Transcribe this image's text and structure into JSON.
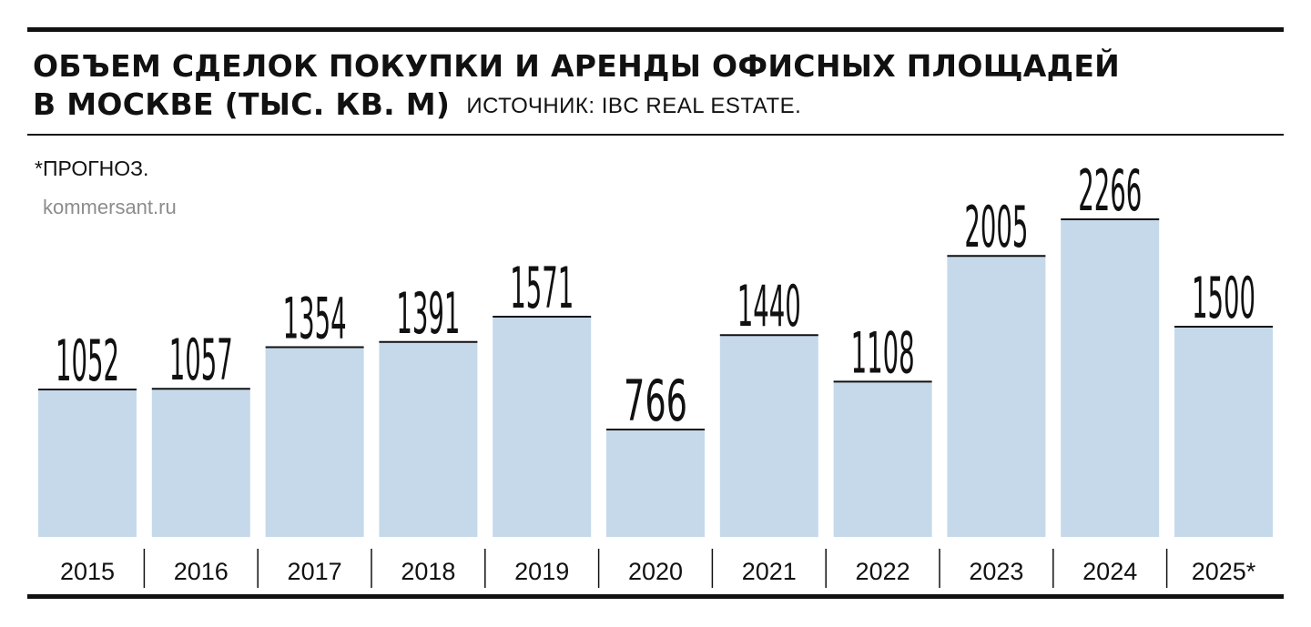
{
  "title_line1": "ОБЪЕМ СДЕЛОК ПОКУПКИ И АРЕНДЫ ОФИСНЫХ ПЛОЩАДЕЙ",
  "title_line2": "В МОСКВЕ (ТЫС. КВ. М)",
  "source": "ИСТОЧНИК: IBC REAL ESTATE.",
  "note": "*ПРОГНОЗ.",
  "watermark": "kommersant.ru",
  "colors": {
    "bar": "#c5d9ea",
    "text": "#111111"
  },
  "chart_data": {
    "type": "bar",
    "title": "ОБЪЕМ СДЕЛОК ПОКУПКИ И АРЕНДЫ ОФИСНЫХ ПЛОЩАДЕЙ В МОСКВЕ (ТЫС. КВ. М)",
    "categories": [
      "2015",
      "2016",
      "2017",
      "2018",
      "2019",
      "2020",
      "2021",
      "2022",
      "2023",
      "2024",
      "2025*"
    ],
    "values": [
      1052,
      1057,
      1354,
      1391,
      1571,
      766,
      1440,
      1108,
      2005,
      2266,
      1500
    ],
    "xlabel": "",
    "ylabel": "",
    "ylim": [
      0,
      2266
    ],
    "grid": false,
    "data_labels": true
  }
}
